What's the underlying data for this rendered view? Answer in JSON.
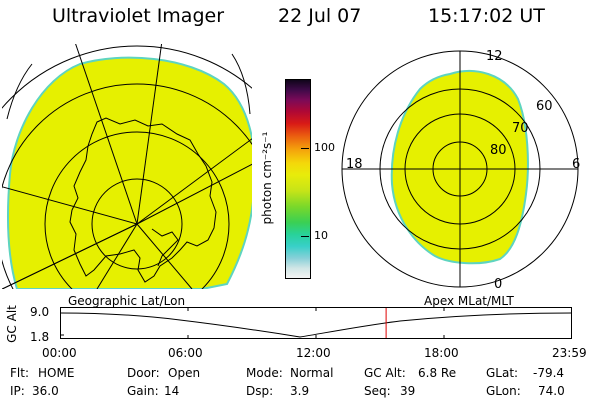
{
  "header": {
    "title": "Ultraviolet Imager",
    "date": "22 Jul 07",
    "time": "15:17:02 UT"
  },
  "colorbar": {
    "unit_label": "photon cm⁻²s⁻¹",
    "labels": [
      "100",
      "10"
    ]
  },
  "polar_map": {
    "mlt_labels": [
      "12",
      "18",
      "6",
      "0"
    ],
    "lat_labels": [
      "60",
      "70",
      "80"
    ]
  },
  "panels": {
    "geographic_label": "Geographic Lat/Lon",
    "apex_label": "Apex MLat/MLT"
  },
  "altitude_plot": {
    "axis_label": "GC Alt",
    "y_ticks": [
      "9.0",
      "1.8"
    ],
    "x_ticks": [
      "00:00",
      "06:00",
      "12:00",
      "18:00",
      "23:59"
    ],
    "current_time_fraction": 0.637,
    "marker_color": "#e00000"
  },
  "status": {
    "flt_label": "Flt:",
    "flt_value": "HOME",
    "door_label": "Door:",
    "door_value": "Open",
    "mode_label": "Mode:",
    "mode_value": "Normal",
    "gcalt_label": "GC Alt:",
    "gcalt_value": "6.8 Re",
    "glat_label": "GLat:",
    "glat_value": "-79.4",
    "ip_label": "IP:",
    "ip_value": "36.0",
    "gain_label": "Gain:",
    "gain_value": "14",
    "dsp_label": "Dsp:",
    "dsp_value": "3.9",
    "seq_label": "Seq:",
    "seq_value": "39",
    "glon_label": "GLon:",
    "glon_value": "74.0"
  },
  "colors": {
    "aurora_fill": "#e6f000",
    "aurora_edge": "#5ed4c0"
  }
}
